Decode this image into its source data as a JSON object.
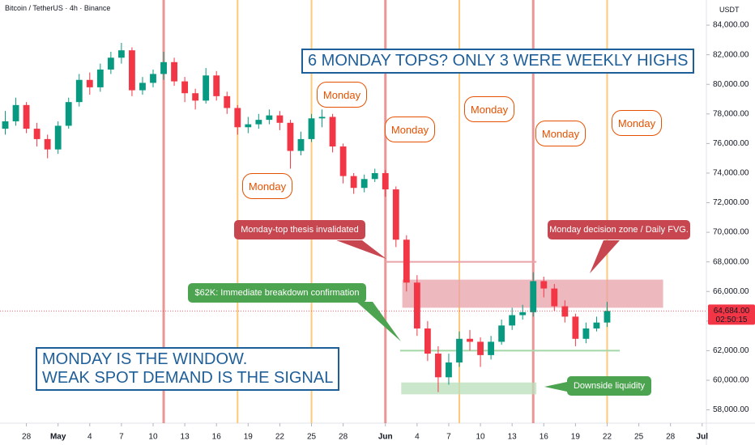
{
  "chart_data": {
    "type": "candlestick",
    "header": "Bitcoin / TetherUS · 4h · Binance",
    "currency": "USDT",
    "title": "6 MONDAY TOPS? ONLY 3 WERE WEEKLY HIGHS",
    "thesis": [
      "MONDAY IS THE WINDOW.",
      "WEAK SPOT DEMAND IS THE SIGNAL"
    ],
    "x": [
      -5,
      -4,
      -3,
      -2,
      -1,
      0,
      1,
      2,
      3,
      4,
      5,
      6,
      7,
      8,
      9,
      10,
      11,
      12,
      13,
      14,
      15,
      16,
      17,
      18,
      19,
      20,
      21,
      22,
      23,
      24,
      25,
      26,
      27,
      28,
      29,
      30,
      31,
      32,
      33,
      34,
      35,
      36,
      37,
      38,
      39,
      40,
      41,
      42,
      43,
      44,
      45,
      46,
      47,
      48,
      49,
      50,
      51,
      52
    ],
    "open": [
      77000,
      77500,
      78600,
      77000,
      76300,
      75600,
      77200,
      78800,
      80300,
      79800,
      81000,
      81800,
      82300,
      79600,
      80100,
      80700,
      81500,
      80200,
      79400,
      78900,
      80600,
      79200,
      78400,
      77100,
      77300,
      77600,
      77900,
      77400,
      75500,
      76300,
      77700,
      77800,
      75800,
      73800,
      73000,
      73600,
      74000,
      72900,
      69500,
      66600,
      63500,
      61800,
      60200,
      61200,
      62800,
      62600,
      61700,
      62600,
      63700,
      64400,
      64600,
      66700,
      66200,
      65000,
      64300,
      62800,
      63500,
      63900
    ],
    "high": [
      78200,
      79100,
      78800,
      77400,
      76600,
      77500,
      79100,
      80700,
      80800,
      81400,
      82200,
      82800,
      82500,
      80500,
      81000,
      82200,
      81800,
      80500,
      79700,
      81100,
      80900,
      79500,
      78600,
      77800,
      78000,
      78300,
      78200,
      77600,
      76800,
      78000,
      78300,
      78000,
      76000,
      74000,
      73900,
      74300,
      74200,
      73100,
      69800,
      67100,
      64000,
      62300,
      61800,
      63300,
      63400,
      62900,
      63000,
      64100,
      64900,
      65100,
      67300,
      67000,
      66500,
      65400,
      64500,
      63900,
      64300,
      65300
    ],
    "low": [
      76600,
      77200,
      76700,
      75800,
      75000,
      75300,
      77000,
      78500,
      79300,
      79500,
      80700,
      81400,
      79200,
      79300,
      79800,
      80300,
      79900,
      78800,
      78300,
      78700,
      78900,
      78000,
      76600,
      76700,
      77000,
      77300,
      76900,
      74300,
      75200,
      76100,
      77100,
      75400,
      73300,
      72600,
      72700,
      73400,
      72400,
      69000,
      66000,
      63000,
      61300,
      59200,
      59700,
      60900,
      62000,
      60900,
      61400,
      62400,
      63400,
      64100,
      64300,
      65600,
      64700,
      63900,
      62300,
      62500,
      63300,
      63600
    ],
    "close": [
      77500,
      78600,
      77000,
      76300,
      75600,
      77200,
      78800,
      80300,
      79800,
      81000,
      81800,
      82300,
      79600,
      80100,
      80700,
      81500,
      80200,
      79400,
      78900,
      80600,
      79200,
      78400,
      77100,
      77300,
      77600,
      77900,
      77400,
      75500,
      76300,
      77700,
      77800,
      75800,
      73800,
      73000,
      73600,
      74000,
      72900,
      69500,
      66600,
      63500,
      61800,
      60200,
      61200,
      62800,
      62600,
      61700,
      62600,
      63700,
      64400,
      64600,
      66700,
      66200,
      65000,
      64300,
      62800,
      63500,
      63900,
      64684
    ],
    "up_color": "#089981",
    "down_color": "#f23645",
    "xlim": [
      -5.5,
      61.4
    ],
    "xticks": [
      {
        "value": -3,
        "label": "28"
      },
      {
        "value": 0,
        "label": "May"
      },
      {
        "value": 3,
        "label": "4"
      },
      {
        "value": 6,
        "label": "7"
      },
      {
        "value": 9,
        "label": "10"
      },
      {
        "value": 12,
        "label": "13"
      },
      {
        "value": 15,
        "label": "16"
      },
      {
        "value": 18,
        "label": "19"
      },
      {
        "value": 21,
        "label": "22"
      },
      {
        "value": 24,
        "label": "25"
      },
      {
        "value": 27,
        "label": "28"
      },
      {
        "value": 31,
        "label": "Jun"
      },
      {
        "value": 34,
        "label": "4"
      },
      {
        "value": 37,
        "label": "7"
      },
      {
        "value": 40,
        "label": "10"
      },
      {
        "value": 43,
        "label": "13"
      },
      {
        "value": 46,
        "label": "16"
      },
      {
        "value": 49,
        "label": "19"
      },
      {
        "value": 52,
        "label": "22"
      },
      {
        "value": 55,
        "label": "25"
      },
      {
        "value": 58,
        "label": "28"
      },
      {
        "value": 61,
        "label": "Jul"
      }
    ],
    "ylim": [
      57100,
      85700
    ],
    "yticks": [
      {
        "value": 58000,
        "label": "58,000.00"
      },
      {
        "value": 60000,
        "label": "60,000.00"
      },
      {
        "value": 62000,
        "label": "62,000.00"
      },
      {
        "value": 64000,
        "label": "64,000.00"
      },
      {
        "value": 66000,
        "label": "66,000.00"
      },
      {
        "value": 68000,
        "label": "68,000.00"
      },
      {
        "value": 70000,
        "label": "70,000.00"
      },
      {
        "value": 72000,
        "label": "72,000.00"
      },
      {
        "value": 74000,
        "label": "74,000.00"
      },
      {
        "value": 76000,
        "label": "76,000.00"
      },
      {
        "value": 78000,
        "label": "78,000.00"
      },
      {
        "value": 80000,
        "label": "80,000.00"
      },
      {
        "value": 82000,
        "label": "82,000.00"
      },
      {
        "value": 84000,
        "label": "84,000.00"
      }
    ],
    "last_price": {
      "value": 64684,
      "label": "64,684.00"
    },
    "countdown": "02:50:15",
    "mondays": [
      {
        "x": 10,
        "color": "#e57373"
      },
      {
        "x": 17,
        "color": "#ffb74d"
      },
      {
        "x": 24,
        "color": "#ffb74d"
      },
      {
        "x": 31,
        "color": "#e57373"
      },
      {
        "x": 38,
        "color": "#ffb74d"
      },
      {
        "x": 45,
        "color": "#e57373"
      },
      {
        "x": 52,
        "color": "#ffb74d"
      }
    ],
    "zones": [
      {
        "x": [
          32.6,
          57.3
        ],
        "y": [
          64900,
          66800
        ],
        "color": "#e8a2a8"
      },
      {
        "x": [
          32.5,
          45.3
        ],
        "y": [
          59050,
          59850
        ],
        "color": "#b9dfb9"
      }
    ],
    "levels": [
      {
        "x": [
          31,
          45.3
        ],
        "y": 68000,
        "color": "#e8a2a8"
      },
      {
        "x": [
          32.4,
          53.2
        ],
        "y": 62000,
        "color": "#a5d6a7"
      }
    ],
    "monday_labels": [
      "Monday",
      "Monday",
      "Monday",
      "Monday",
      "Monday",
      "Monday"
    ],
    "callouts": [
      "Monday-top thesis invalidated",
      "$62K: Immediate breakdown confirmation",
      "Monday decision zone / Daily FVG.",
      "Downside liquidity"
    ]
  }
}
